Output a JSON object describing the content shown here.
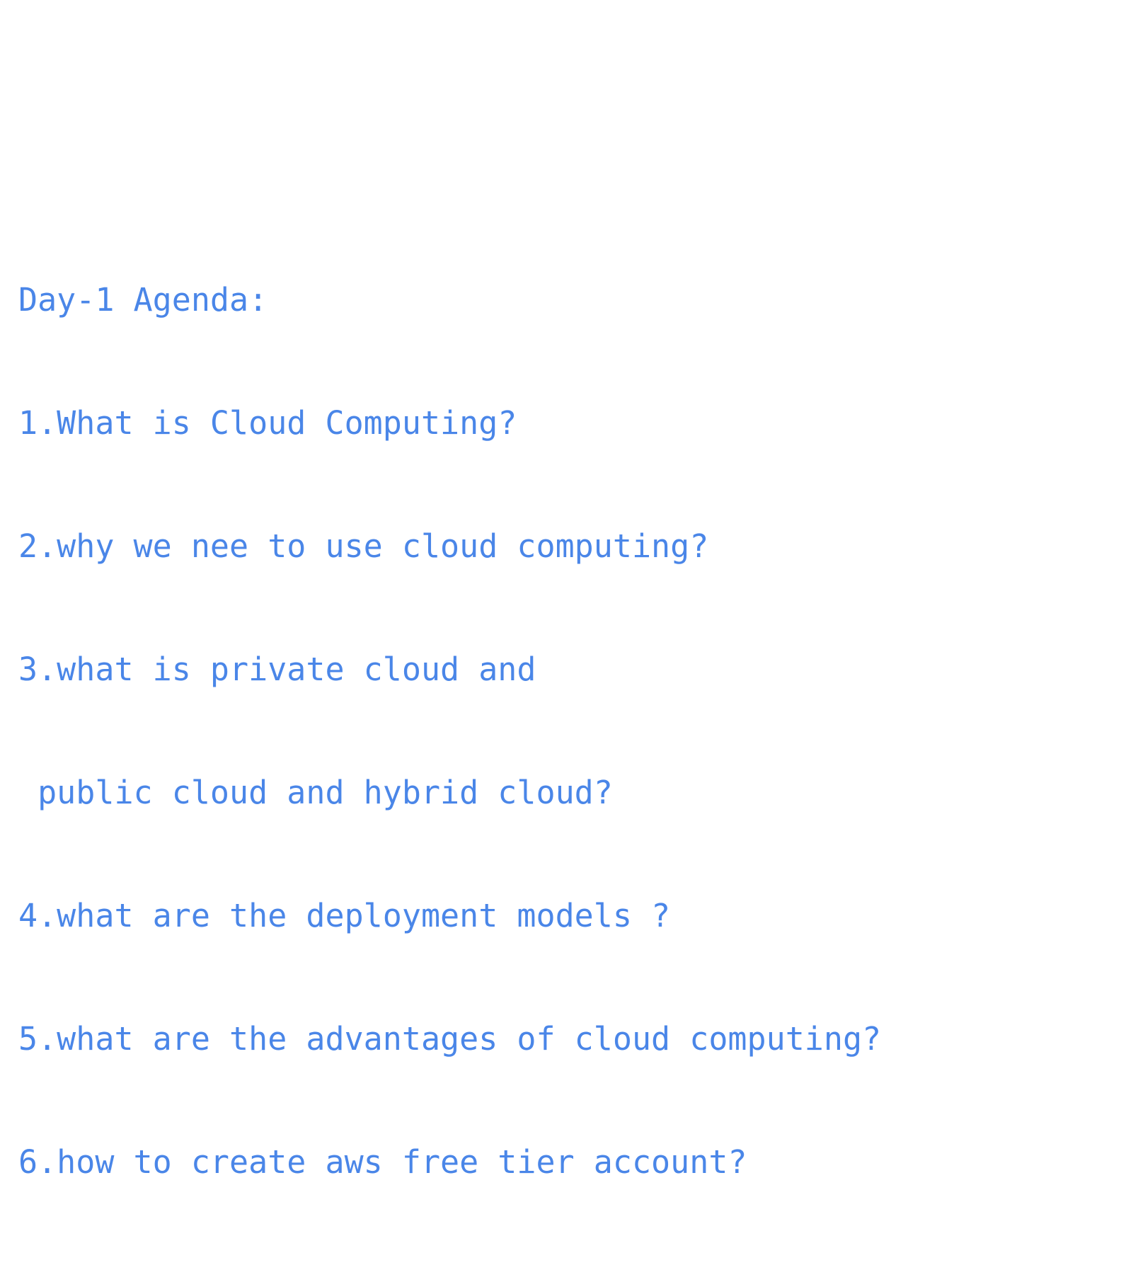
{
  "slide": {
    "text_color": "#4a86e8",
    "background_color": "#ffffff",
    "lines": [
      "Day-1 Agenda:",
      "1.What is Cloud Computing?",
      "2.why we nee to use cloud computing?",
      "3.what is private cloud and",
      " public cloud and hybrid cloud?",
      "4.what are the deployment models ?",
      "5.what are the advantages of cloud computing?",
      "6.how to create aws free tier account?"
    ]
  }
}
